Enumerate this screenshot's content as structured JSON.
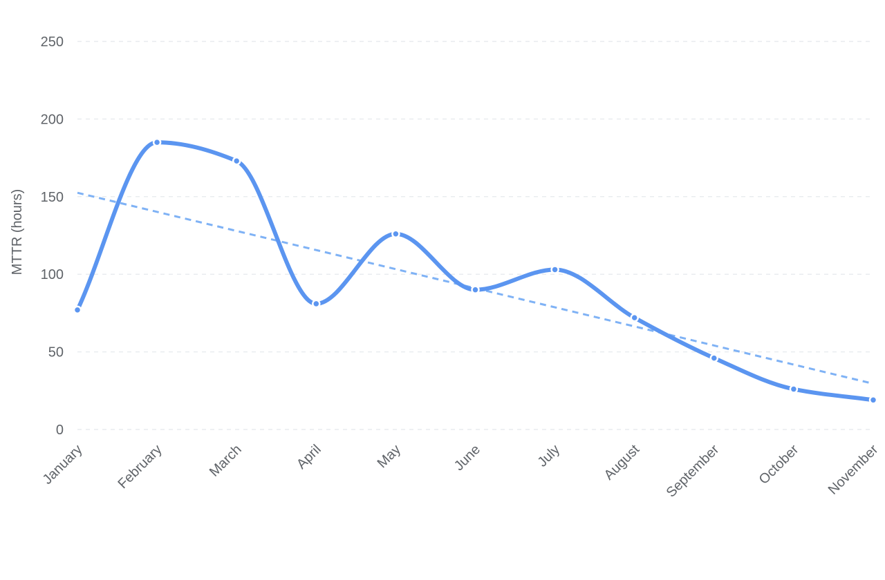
{
  "chart_data": {
    "type": "line",
    "title": "",
    "xlabel": "",
    "ylabel": "MTTR (hours)",
    "categories": [
      "January",
      "February",
      "March",
      "April",
      "May",
      "June",
      "July",
      "August",
      "September",
      "October",
      "November"
    ],
    "series": [
      {
        "values": [
          77,
          185,
          173,
          81,
          126,
          90,
          103,
          72,
          46,
          26,
          19
        ],
        "color": "#5b95f0",
        "smooth": true,
        "markers": true
      }
    ],
    "trendline": {
      "start": 152.5,
      "end": 29.5,
      "color": "#7fb2f5",
      "style": "dashed"
    },
    "ylim": [
      0,
      250
    ],
    "yticks": [
      "0",
      "50",
      "100",
      "150",
      "200",
      "250"
    ],
    "grid": true,
    "legend": "none"
  }
}
